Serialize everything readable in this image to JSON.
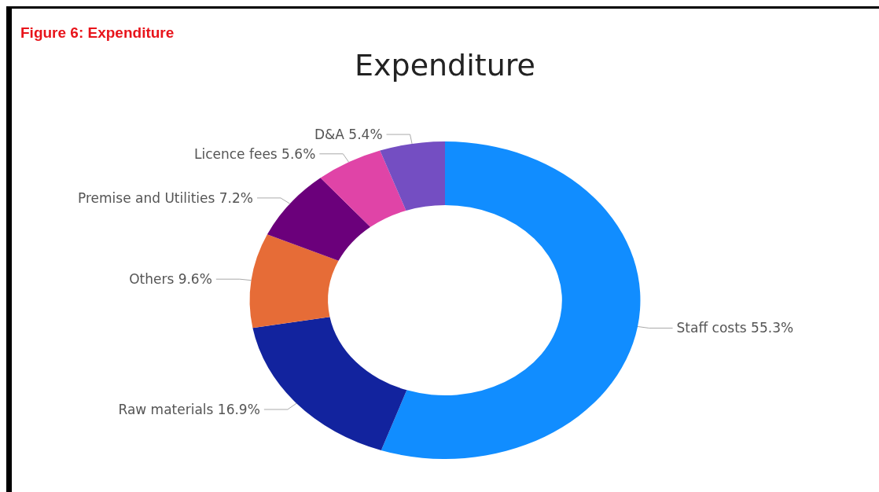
{
  "chart_data": {
    "type": "donut",
    "title": "Figure 6: Expenditure",
    "subtitle": "Expenditure",
    "categories": [
      "Staff costs",
      "Raw materials",
      "Others",
      "Premise and Utilities",
      "Licence fees",
      "D&A"
    ],
    "values": [
      55.3,
      16.9,
      9.6,
      7.2,
      5.6,
      5.4
    ],
    "value_labels": [
      "55.3%",
      "16.9%",
      "9.6%",
      "7.2%",
      "5.6%",
      "5.4%"
    ],
    "colors": [
      "#118dff",
      "#12239e",
      "#e66c37",
      "#6b007b",
      "#e044a7",
      "#744ec2"
    ]
  }
}
